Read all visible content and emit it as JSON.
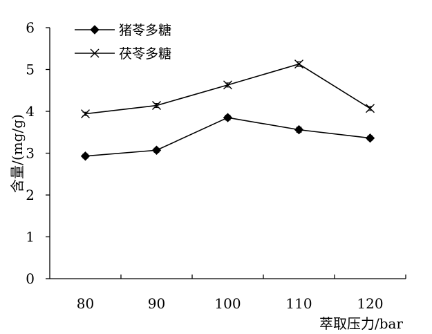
{
  "chart_data": {
    "type": "line",
    "x": [
      80,
      90,
      100,
      110,
      120
    ],
    "xlabel": "萃取压力/bar",
    "ylabel": "含量/(mg/g)",
    "xlim": [
      75,
      125
    ],
    "ylim": [
      0,
      6
    ],
    "x_ticks": [
      "80",
      "90",
      "100",
      "110",
      "120"
    ],
    "y_ticks": [
      "0",
      "1",
      "2",
      "3",
      "4",
      "5",
      "6"
    ],
    "grid": false,
    "legend_position": "top-left",
    "series": [
      {
        "name": "猪苓多糖",
        "marker": "diamond",
        "values": [
          2.93,
          3.07,
          3.85,
          3.56,
          3.36
        ],
        "errors": [
          0.05,
          0.05,
          0.06,
          0.06,
          0.05
        ]
      },
      {
        "name": "茯苓多糖",
        "marker": "x",
        "values": [
          3.94,
          4.14,
          4.63,
          5.13,
          4.07
        ],
        "errors": [
          0.04,
          0.05,
          0.05,
          0.06,
          0.05
        ]
      }
    ]
  }
}
